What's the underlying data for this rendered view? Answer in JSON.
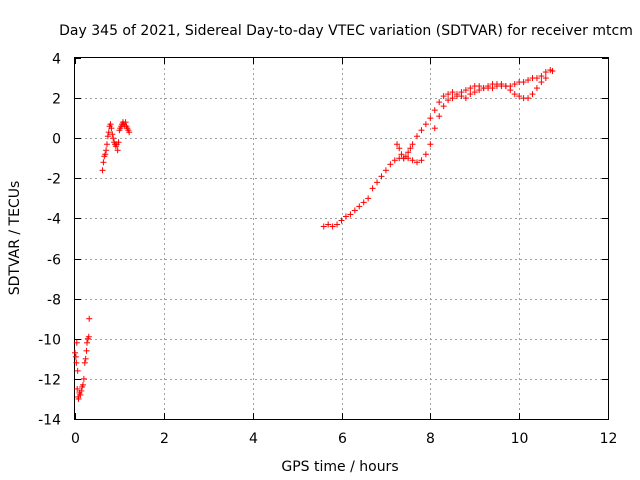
{
  "chart_data": {
    "type": "scatter",
    "title": "Day 345 of 2021, Sidereal Day-to-day VTEC variation (SDTVAR) for receiver mtcm",
    "xlabel": "GPS time / hours",
    "ylabel": "SDTVAR / TECUs",
    "xlim": [
      0,
      12
    ],
    "ylim": [
      -14,
      4
    ],
    "xticks": [
      0,
      2,
      4,
      6,
      8,
      10,
      12
    ],
    "yticks": [
      -14,
      -12,
      -10,
      -8,
      -6,
      -4,
      -2,
      0,
      2,
      4
    ],
    "grid": true,
    "marker": "+",
    "series": [
      {
        "name": "SDTVAR",
        "color": "#ff0000",
        "points": [
          [
            0.0,
            -10.7
          ],
          [
            0.02,
            -10.9
          ],
          [
            0.03,
            -11.2
          ],
          [
            0.05,
            -12.5
          ],
          [
            0.07,
            -12.9
          ],
          [
            0.08,
            -13.0
          ],
          [
            0.1,
            -12.7
          ],
          [
            0.12,
            -12.8
          ],
          [
            0.14,
            -12.6
          ],
          [
            0.16,
            -12.4
          ],
          [
            0.18,
            -12.3
          ],
          [
            0.2,
            -12.0
          ],
          [
            0.22,
            -11.2
          ],
          [
            0.24,
            -11.0
          ],
          [
            0.26,
            -10.6
          ],
          [
            0.27,
            -10.2
          ],
          [
            0.29,
            -10.0
          ],
          [
            0.31,
            -9.9
          ],
          [
            0.32,
            -9.0
          ],
          [
            0.04,
            -10.2
          ],
          [
            0.06,
            -11.6
          ],
          [
            0.62,
            -1.6
          ],
          [
            0.64,
            -1.2
          ],
          [
            0.66,
            -0.9
          ],
          [
            0.68,
            -0.8
          ],
          [
            0.7,
            -0.6
          ],
          [
            0.72,
            -0.3
          ],
          [
            0.74,
            0.1
          ],
          [
            0.76,
            0.3
          ],
          [
            0.78,
            0.6
          ],
          [
            0.8,
            0.7
          ],
          [
            0.82,
            0.5
          ],
          [
            0.84,
            0.2
          ],
          [
            0.86,
            0.0
          ],
          [
            0.88,
            -0.2
          ],
          [
            0.9,
            -0.3
          ],
          [
            0.92,
            -0.4
          ],
          [
            0.94,
            -0.3
          ],
          [
            0.96,
            -0.6
          ],
          [
            0.98,
            -0.2
          ],
          [
            1.0,
            0.4
          ],
          [
            1.02,
            0.5
          ],
          [
            1.04,
            0.6
          ],
          [
            1.06,
            0.7
          ],
          [
            1.08,
            0.8
          ],
          [
            1.1,
            0.7
          ],
          [
            1.12,
            0.6
          ],
          [
            1.14,
            0.8
          ],
          [
            1.16,
            0.6
          ],
          [
            1.18,
            0.5
          ],
          [
            1.2,
            0.4
          ],
          [
            1.22,
            0.3
          ],
          [
            5.6,
            -4.4
          ],
          [
            5.7,
            -4.3
          ],
          [
            5.8,
            -4.4
          ],
          [
            5.9,
            -4.3
          ],
          [
            6.0,
            -4.1
          ],
          [
            6.1,
            -3.9
          ],
          [
            6.2,
            -3.8
          ],
          [
            6.3,
            -3.6
          ],
          [
            6.4,
            -3.4
          ],
          [
            6.5,
            -3.2
          ],
          [
            6.6,
            -3.0
          ],
          [
            6.7,
            -2.5
          ],
          [
            6.8,
            -2.2
          ],
          [
            6.9,
            -1.9
          ],
          [
            7.0,
            -1.6
          ],
          [
            7.1,
            -1.3
          ],
          [
            7.2,
            -1.1
          ],
          [
            7.3,
            -1.0
          ],
          [
            7.4,
            -1.0
          ],
          [
            7.5,
            -1.0
          ],
          [
            7.6,
            -1.1
          ],
          [
            7.7,
            -1.2
          ],
          [
            7.8,
            -1.1
          ],
          [
            7.9,
            -0.8
          ],
          [
            8.0,
            -0.3
          ],
          [
            8.1,
            0.5
          ],
          [
            8.2,
            1.1
          ],
          [
            8.3,
            1.6
          ],
          [
            8.4,
            1.9
          ],
          [
            8.5,
            2.0
          ],
          [
            8.6,
            2.1
          ],
          [
            8.7,
            2.1
          ],
          [
            8.8,
            2.0
          ],
          [
            8.9,
            2.2
          ],
          [
            9.0,
            2.3
          ],
          [
            9.1,
            2.4
          ],
          [
            9.2,
            2.5
          ],
          [
            9.3,
            2.5
          ],
          [
            9.4,
            2.5
          ],
          [
            9.5,
            2.6
          ],
          [
            9.6,
            2.6
          ],
          [
            9.7,
            2.6
          ],
          [
            9.8,
            2.6
          ],
          [
            9.9,
            2.7
          ],
          [
            10.0,
            2.8
          ],
          [
            10.1,
            2.8
          ],
          [
            10.2,
            2.9
          ],
          [
            10.3,
            3.0
          ],
          [
            10.4,
            3.0
          ],
          [
            10.5,
            3.1
          ],
          [
            10.6,
            3.3
          ],
          [
            10.7,
            3.4
          ],
          [
            10.75,
            3.35
          ],
          [
            7.25,
            -0.3
          ],
          [
            7.3,
            -0.5
          ],
          [
            7.35,
            -0.8
          ],
          [
            7.4,
            -1.0
          ],
          [
            7.45,
            -0.9
          ],
          [
            7.5,
            -0.7
          ],
          [
            7.55,
            -0.5
          ],
          [
            7.6,
            -0.3
          ],
          [
            7.7,
            0.1
          ],
          [
            7.8,
            0.4
          ],
          [
            7.9,
            0.7
          ],
          [
            8.0,
            1.0
          ],
          [
            8.1,
            1.4
          ],
          [
            8.2,
            1.8
          ],
          [
            8.3,
            2.1
          ],
          [
            8.4,
            2.2
          ],
          [
            8.5,
            2.3
          ],
          [
            8.6,
            2.2
          ],
          [
            8.7,
            2.3
          ],
          [
            8.8,
            2.4
          ],
          [
            8.9,
            2.5
          ],
          [
            9.0,
            2.6
          ],
          [
            9.1,
            2.6
          ],
          [
            9.2,
            2.5
          ],
          [
            9.3,
            2.6
          ],
          [
            9.4,
            2.7
          ],
          [
            9.5,
            2.7
          ],
          [
            9.6,
            2.7
          ],
          [
            9.7,
            2.6
          ],
          [
            9.8,
            2.4
          ],
          [
            9.9,
            2.2
          ],
          [
            10.0,
            2.1
          ],
          [
            10.1,
            2.0
          ],
          [
            10.2,
            2.0
          ],
          [
            10.3,
            2.2
          ],
          [
            10.4,
            2.5
          ],
          [
            10.5,
            2.8
          ],
          [
            10.6,
            3.0
          ]
        ]
      }
    ]
  }
}
